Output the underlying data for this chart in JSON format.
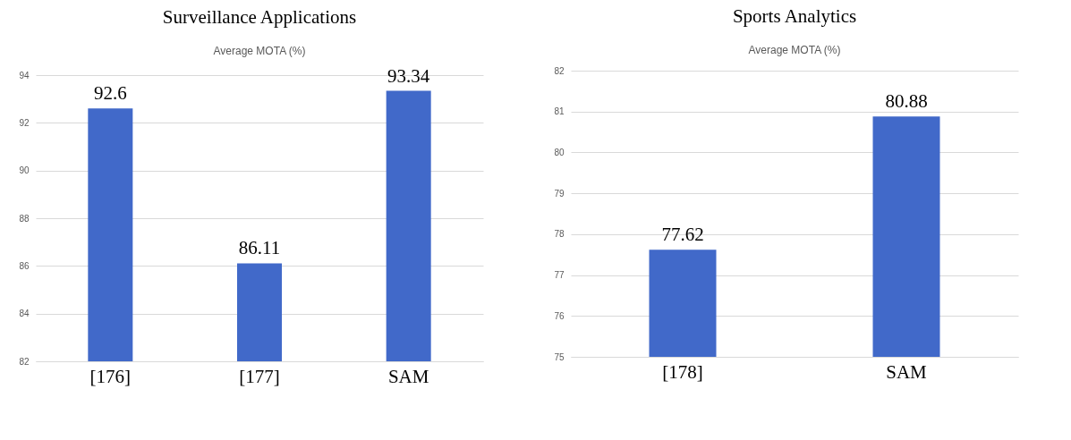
{
  "chart_data": [
    {
      "type": "bar",
      "title": "Surveillance Applications",
      "subtitle": "Average MOTA (%)",
      "categories": [
        "[176]",
        "[177]",
        "SAM"
      ],
      "values": [
        92.6,
        86.11,
        93.34
      ],
      "color": "#4169c9",
      "ylim": [
        82,
        94
      ],
      "yticks": [
        82,
        84,
        86,
        88,
        90,
        92,
        94
      ],
      "grid": "y",
      "data_labels": true
    },
    {
      "type": "bar",
      "title": "Sports Analytics",
      "subtitle": "Average MOTA (%)",
      "categories": [
        "[178]",
        "SAM"
      ],
      "values": [
        77.62,
        80.88
      ],
      "color": "#4169c9",
      "ylim": [
        75,
        82
      ],
      "yticks": [
        75,
        76,
        77,
        78,
        79,
        80,
        81,
        82
      ],
      "grid": "y",
      "data_labels": true
    }
  ]
}
